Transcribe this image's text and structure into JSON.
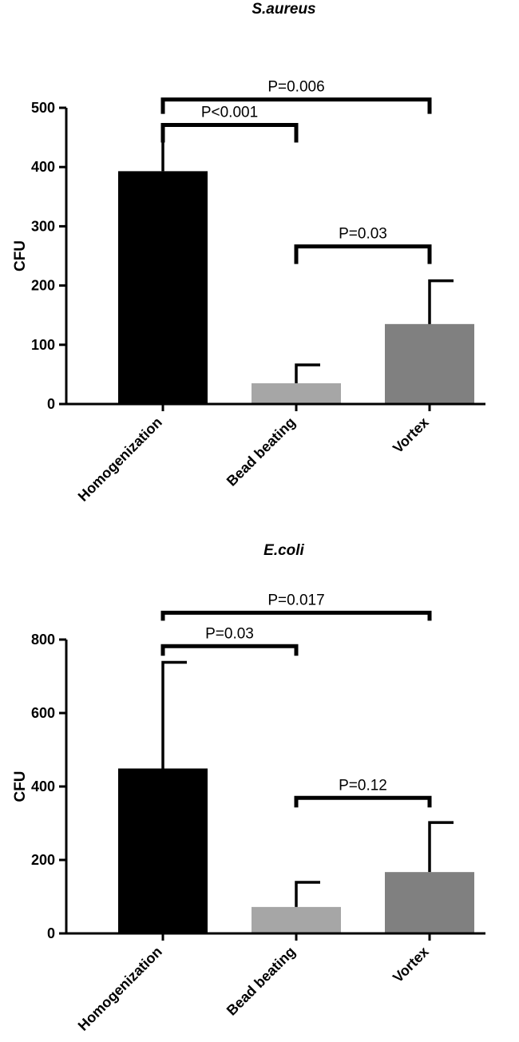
{
  "chart_data": [
    {
      "type": "bar",
      "title": "S.aureus",
      "ylabel": "CFU",
      "xlabel": "",
      "categories": [
        "Homogenization",
        "Bead beating",
        "Vortex"
      ],
      "values": [
        393,
        35,
        135
      ],
      "error_upper": [
        78,
        31,
        73
      ],
      "colors": [
        "#000000",
        "#a6a6a6",
        "#808080"
      ],
      "ylim": [
        0,
        500
      ],
      "yticks": [
        0,
        100,
        200,
        300,
        400,
        500
      ],
      "grid": false,
      "comparisons": [
        {
          "from": 0,
          "to": 2,
          "label": "P=0.006",
          "level": 514
        },
        {
          "from": 0,
          "to": 1,
          "label": "P<0.001",
          "level": 471
        },
        {
          "from": 1,
          "to": 2,
          "label": "P=0.03",
          "level": 266
        }
      ]
    },
    {
      "type": "bar",
      "title": "E.coli",
      "ylabel": "CFU",
      "xlabel": "",
      "categories": [
        "Homogenization",
        "Bead beating",
        "Vortex"
      ],
      "values": [
        449,
        72,
        167
      ],
      "error_upper": [
        289,
        67,
        135
      ],
      "colors": [
        "#000000",
        "#a6a6a6",
        "#808080"
      ],
      "ylim": [
        0,
        800
      ],
      "yticks": [
        0,
        200,
        400,
        600,
        800
      ],
      "grid": false,
      "comparisons": [
        {
          "from": 0,
          "to": 2,
          "label": "P=0.017",
          "level": 873
        },
        {
          "from": 0,
          "to": 1,
          "label": "P=0.03",
          "level": 782
        },
        {
          "from": 1,
          "to": 2,
          "label": "P=0.12",
          "level": 369
        }
      ]
    }
  ]
}
